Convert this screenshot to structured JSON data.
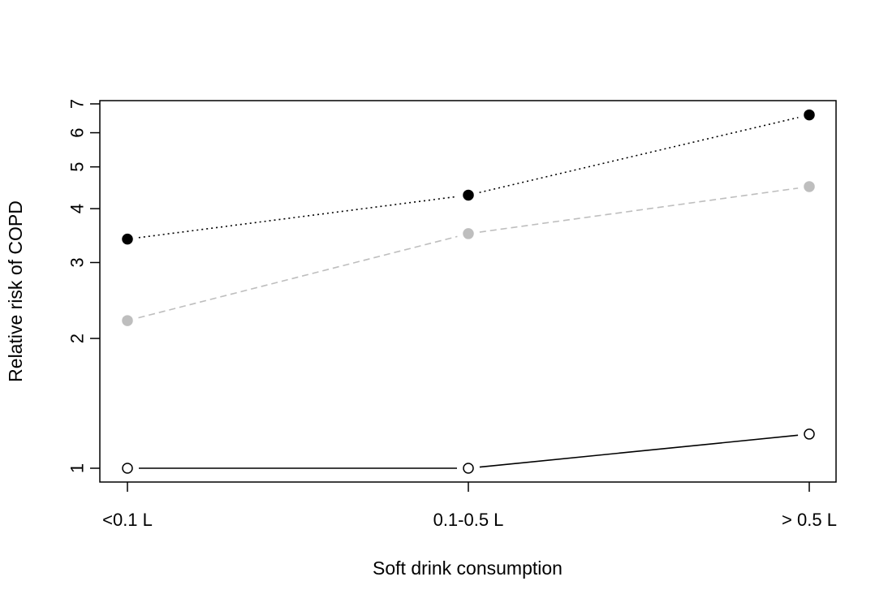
{
  "chart_data": {
    "type": "line",
    "title": "",
    "xlabel": "Soft drink consumption",
    "ylabel": "Relative risk of COPD",
    "categories": [
      "<0.1 L",
      "0.1-0.5 L",
      "> 0.5 L"
    ],
    "y_scale": "log",
    "ylim": [
      0.94,
      7.3
    ],
    "y_ticks": [
      1,
      2,
      3,
      4,
      5,
      6,
      7
    ],
    "y_tick_labels": [
      "1",
      "2",
      "3",
      "4",
      "5",
      "6",
      "7"
    ],
    "grid": false,
    "series": [
      {
        "values": [
          1.0,
          1.0,
          1.2
        ],
        "color": "#000000",
        "marker": "open-circle",
        "line": "solid"
      },
      {
        "values": [
          2.2,
          3.5,
          4.5
        ],
        "color": "#bebebe",
        "marker": "filled-circle",
        "line": "dashed"
      },
      {
        "values": [
          3.4,
          4.3,
          6.6
        ],
        "color": "#000000",
        "marker": "filled-circle",
        "line": "dotted"
      }
    ]
  }
}
